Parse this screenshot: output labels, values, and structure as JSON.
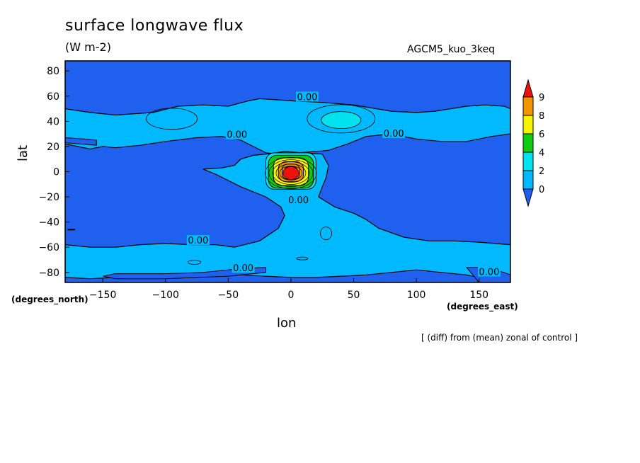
{
  "title": "surface longwave flux",
  "units": "(W m-2)",
  "run_name": "AGCM5_kuo_3keq",
  "footnote": "[ (diff) from (mean) zonal of control ]",
  "chart_data": {
    "type": "contour",
    "title": "surface longwave flux",
    "subtitle": "(W m-2)",
    "xlabel": "lon",
    "ylabel": "lat",
    "xunits": "(degrees_east)",
    "yunits": "(degrees_north)",
    "xlim": [
      -180,
      175
    ],
    "ylim": [
      -88,
      88
    ],
    "x_ticks": [
      -150,
      -100,
      -50,
      0,
      50,
      100,
      150
    ],
    "x_tick_labels": [
      "−150",
      "−100",
      "−50",
      "0",
      "50",
      "100",
      "150"
    ],
    "y_ticks": [
      -80,
      -60,
      -40,
      -20,
      0,
      20,
      40,
      60,
      80
    ],
    "y_tick_labels": [
      "−80",
      "−60",
      "−40",
      "−20",
      "0",
      "20",
      "40",
      "60",
      "80"
    ],
    "contour_labels": [
      {
        "text": "0.00",
        "lon": 13,
        "lat": 58
      },
      {
        "text": "0.00",
        "lon": -43,
        "lat": 28
      },
      {
        "text": "0.00",
        "lon": 82,
        "lat": 29
      },
      {
        "text": "0.00",
        "lon": 6,
        "lat": -24
      },
      {
        "text": "0.00",
        "lon": -74,
        "lat": -56
      },
      {
        "text": "0.00",
        "lon": -38,
        "lat": -78
      },
      {
        "text": "0.00",
        "lon": 158,
        "lat": -81
      }
    ],
    "colorbar": {
      "levels": [
        0,
        2,
        4,
        6,
        8,
        9
      ],
      "labels": [
        "0",
        "2",
        "4",
        "6",
        "8",
        "9"
      ],
      "colors": [
        "#1f60ee",
        "#00b9ff",
        "#00e3ee",
        "#10cc10",
        "#f5f500",
        "#f59500",
        "#f01010"
      ]
    },
    "fields": {
      "negative_color": "#1f60ee",
      "near_zero_color": "#00b9ff",
      "max_center": {
        "lon": 0,
        "lat": 0,
        "value": 9
      }
    },
    "grid": false
  }
}
